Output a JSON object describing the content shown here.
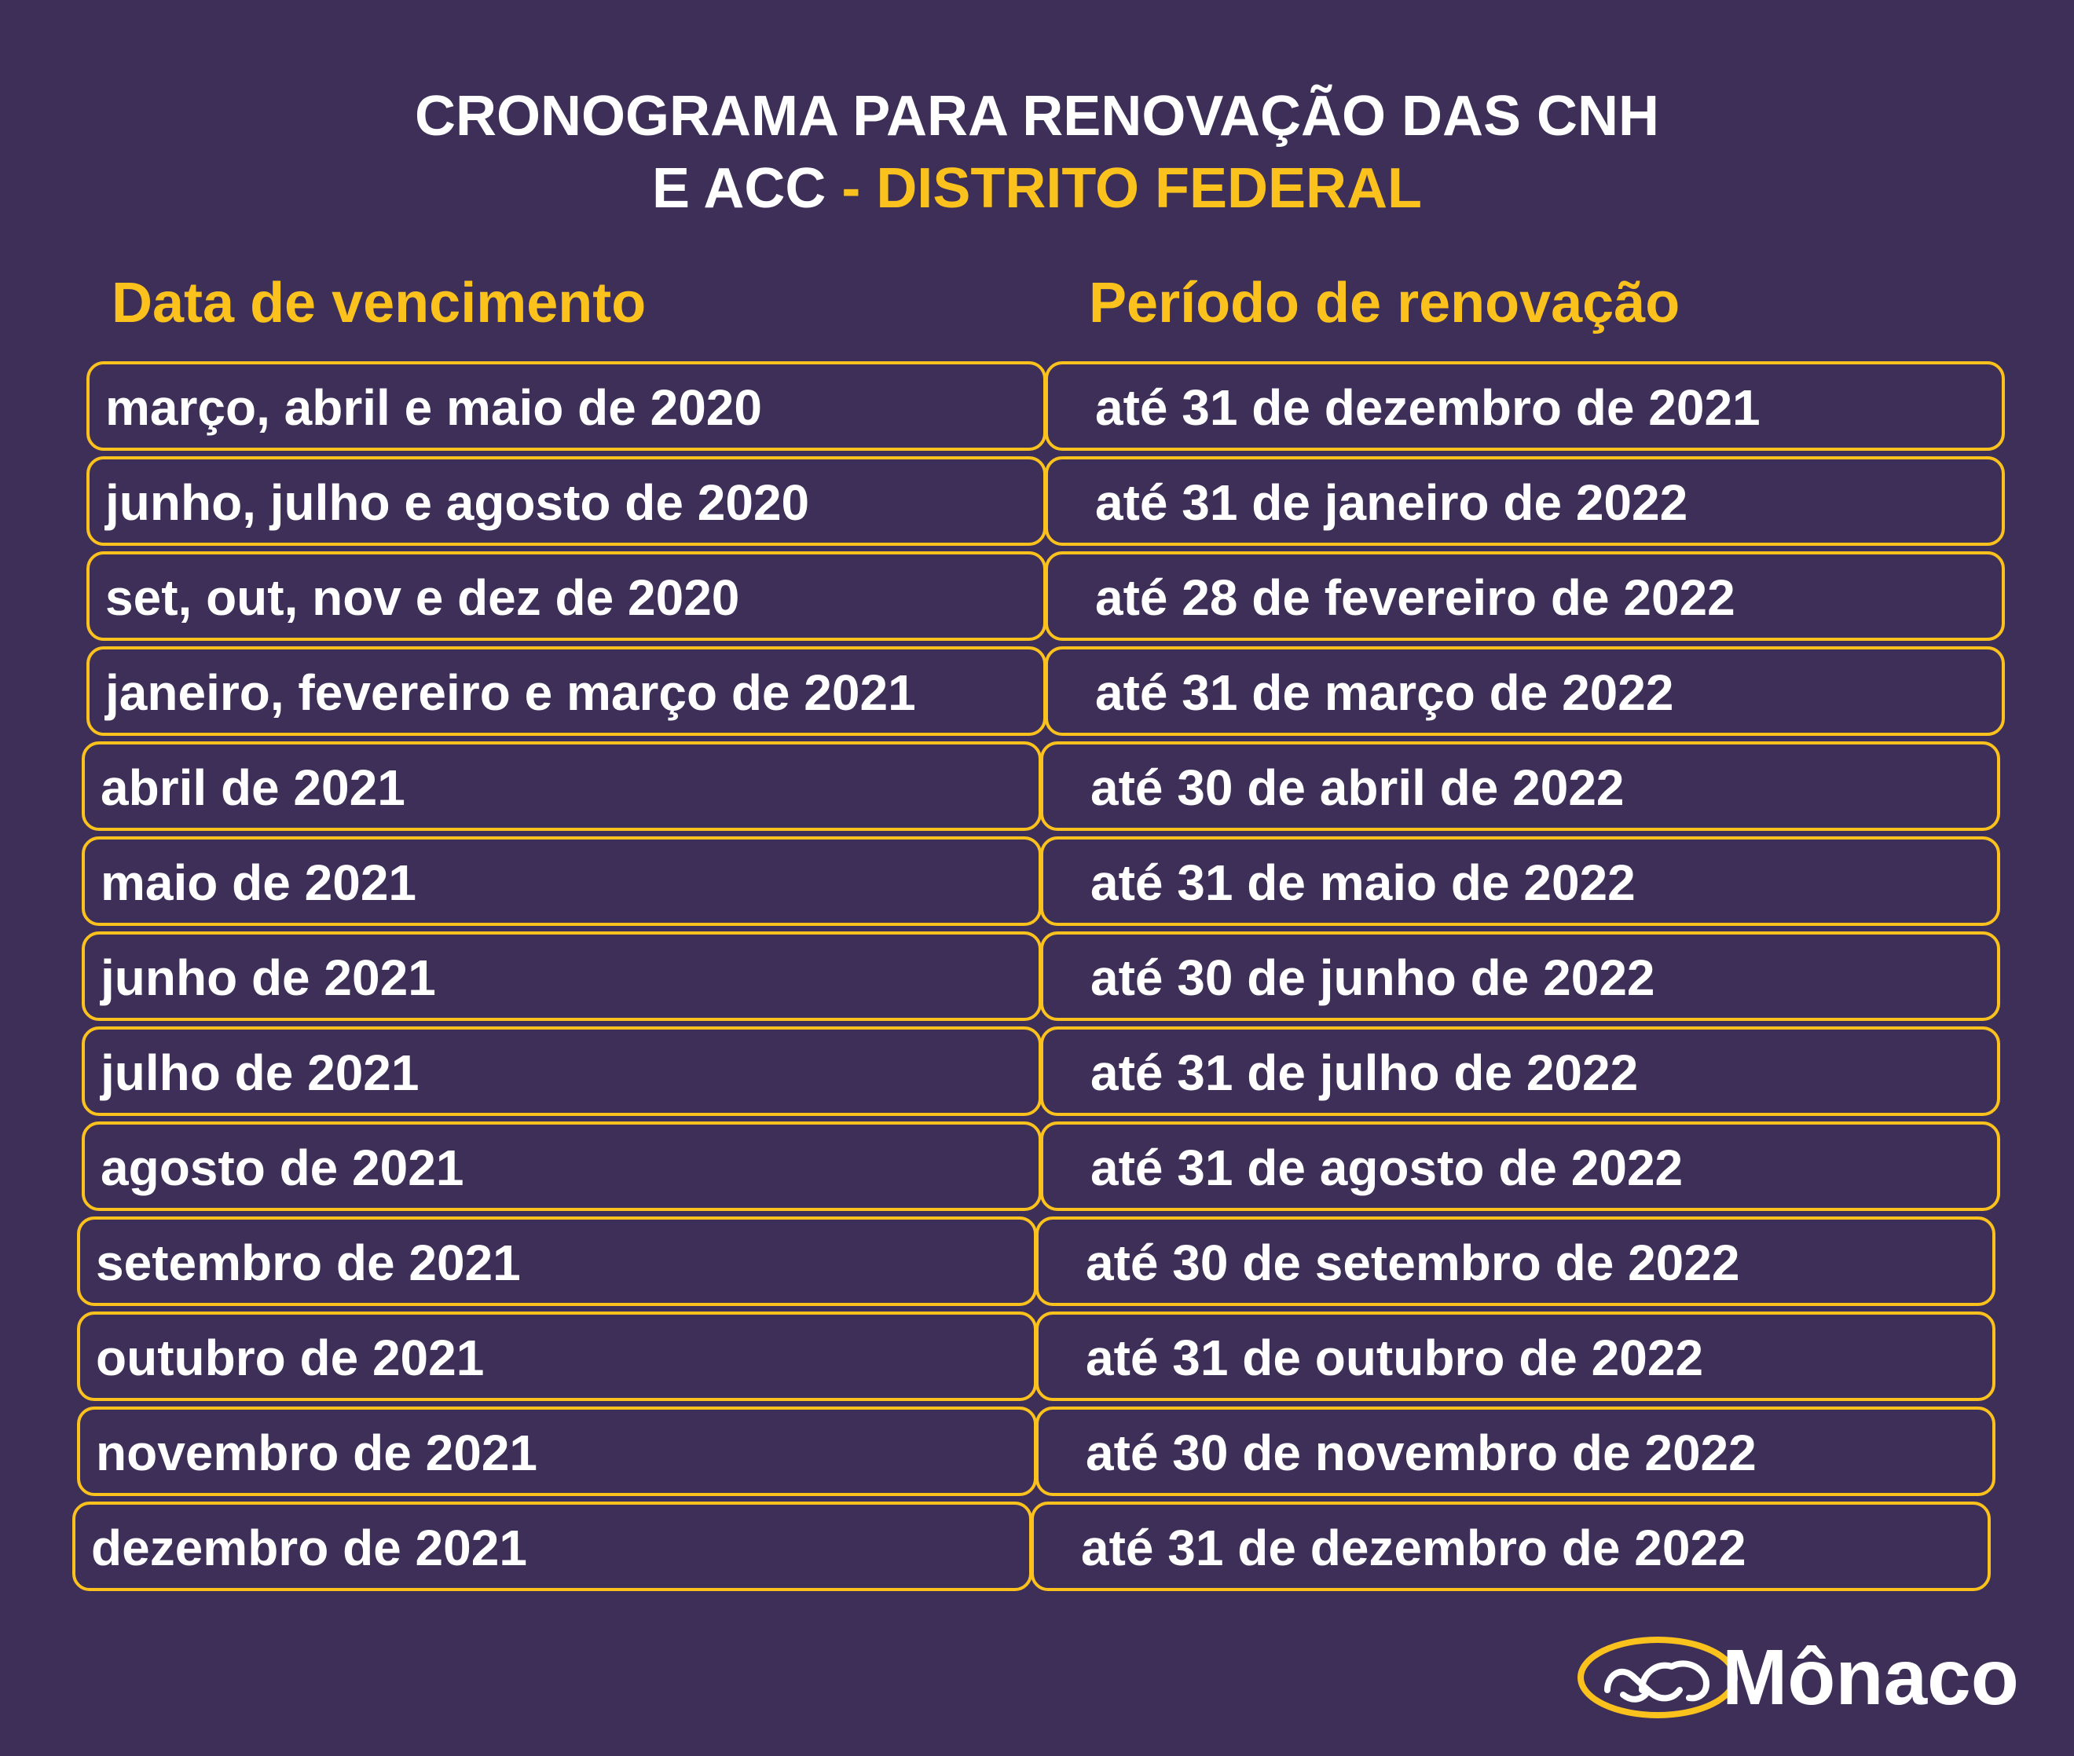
{
  "title": {
    "line1": "CRONOGRAMA PARA RENOVAÇÃO DAS CNH",
    "line2_prefix": "E ACC",
    "line2_accent": " - DISTRITO FEDERAL"
  },
  "headers": {
    "left": "Data de vencimento",
    "right": "Período de renovação"
  },
  "rows": [
    {
      "vencimento": "março, abril e maio de 2020",
      "renovacao": "até 31 de dezembro de 2021"
    },
    {
      "vencimento": "junho, julho e agosto de 2020",
      "renovacao": "até 31 de janeiro de 2022"
    },
    {
      "vencimento": "set, out, nov e dez  de 2020",
      "renovacao": "até 28 de fevereiro de 2022"
    },
    {
      "vencimento": "janeiro, fevereiro e março de 2021",
      "renovacao": "até 31 de março de 2022"
    },
    {
      "vencimento": "abril de 2021",
      "renovacao": "até 30 de abril de 2022"
    },
    {
      "vencimento": "maio de 2021",
      "renovacao": "até 31 de maio de 2022"
    },
    {
      "vencimento": "junho de 2021",
      "renovacao": "até 30 de junho de 2022"
    },
    {
      "vencimento": "julho de 2021",
      "renovacao": "até 31 de julho de 2022"
    },
    {
      "vencimento": "agosto de 2021",
      "renovacao": "até 31 de agosto de 2022"
    },
    {
      "vencimento": "setembro de 2021",
      "renovacao": "até 30 de setembro de 2022"
    },
    {
      "vencimento": "outubro de 2021",
      "renovacao": "até 31 de outubro de 2022"
    },
    {
      "vencimento": "novembro de 2021",
      "renovacao": "até 30 de novembro de 2022"
    },
    {
      "vencimento": "dezembro de 2021",
      "renovacao": "até 31 de dezembro de 2022"
    }
  ],
  "logo": {
    "text": "Mônaco",
    "icon": "monaco-cloud-logo-icon"
  },
  "colors": {
    "background": "#3d2f58",
    "accent": "#fbc21e",
    "text": "#ffffff"
  }
}
